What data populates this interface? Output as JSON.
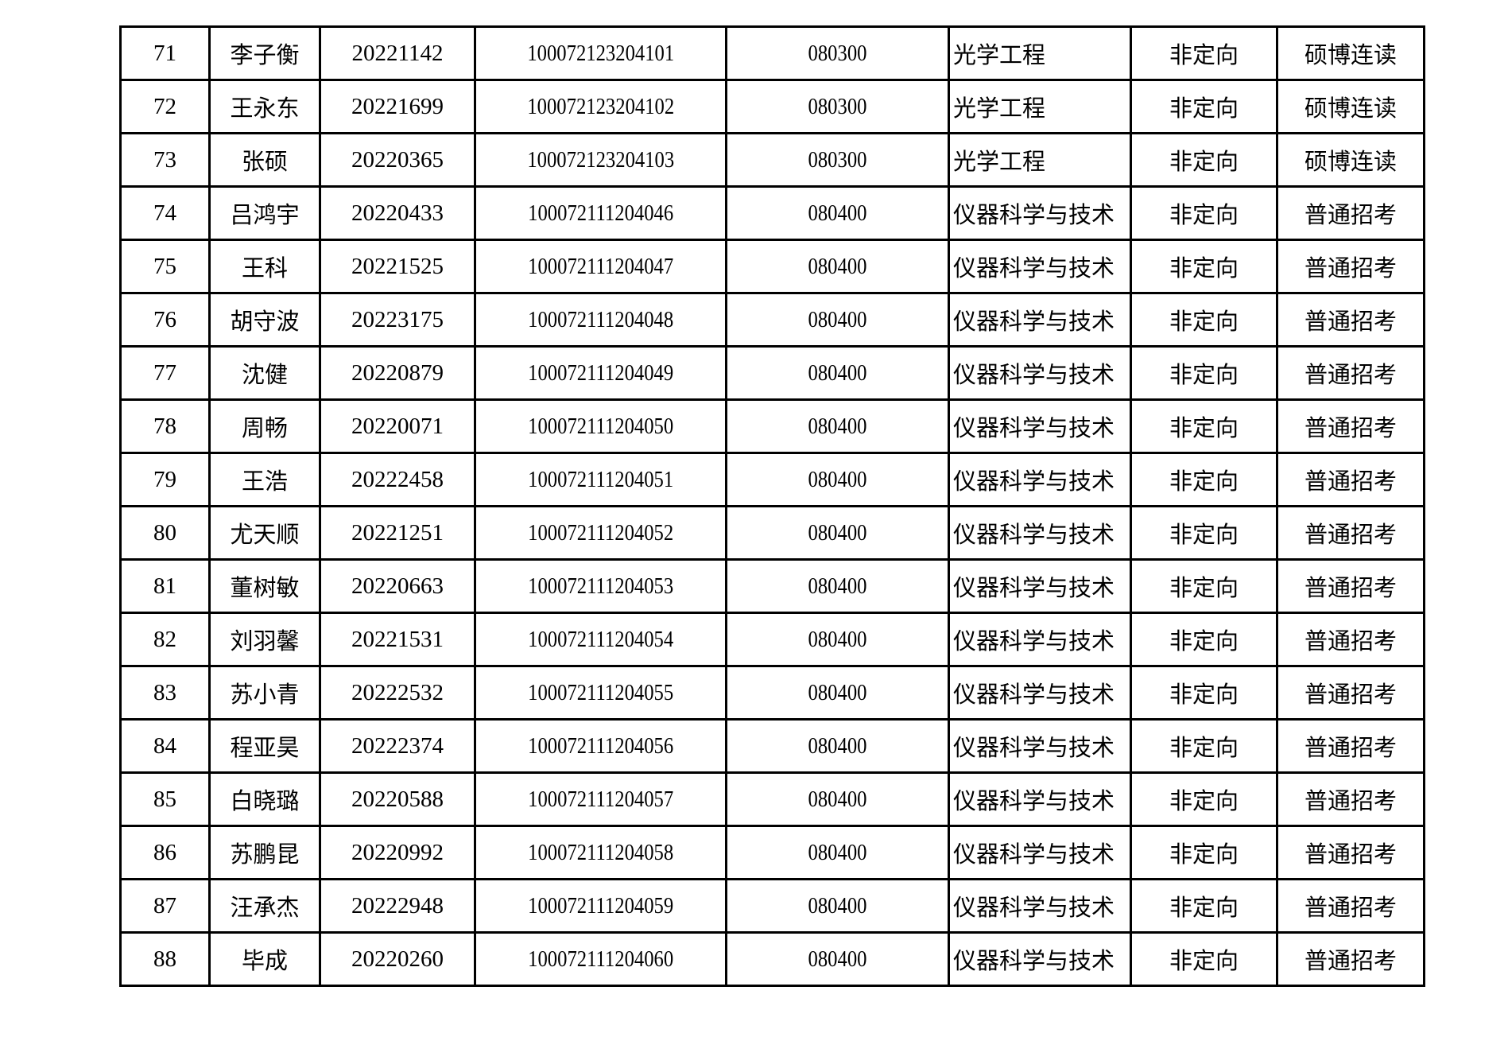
{
  "table": {
    "rows": [
      [
        "71",
        "李子衡",
        "20221142",
        "100072123204101",
        "080300",
        "光学工程",
        "非定向",
        "硕博连读"
      ],
      [
        "72",
        "王永东",
        "20221699",
        "100072123204102",
        "080300",
        "光学工程",
        "非定向",
        "硕博连读"
      ],
      [
        "73",
        "张硕",
        "20220365",
        "100072123204103",
        "080300",
        "光学工程",
        "非定向",
        "硕博连读"
      ],
      [
        "74",
        "吕鸿宇",
        "20220433",
        "100072111204046",
        "080400",
        "仪器科学与技术",
        "非定向",
        "普通招考"
      ],
      [
        "75",
        "王科",
        "20221525",
        "100072111204047",
        "080400",
        "仪器科学与技术",
        "非定向",
        "普通招考"
      ],
      [
        "76",
        "胡守波",
        "20223175",
        "100072111204048",
        "080400",
        "仪器科学与技术",
        "非定向",
        "普通招考"
      ],
      [
        "77",
        "沈健",
        "20220879",
        "100072111204049",
        "080400",
        "仪器科学与技术",
        "非定向",
        "普通招考"
      ],
      [
        "78",
        "周畅",
        "20220071",
        "100072111204050",
        "080400",
        "仪器科学与技术",
        "非定向",
        "普通招考"
      ],
      [
        "79",
        "王浩",
        "20222458",
        "100072111204051",
        "080400",
        "仪器科学与技术",
        "非定向",
        "普通招考"
      ],
      [
        "80",
        "尤天顺",
        "20221251",
        "100072111204052",
        "080400",
        "仪器科学与技术",
        "非定向",
        "普通招考"
      ],
      [
        "81",
        "董树敏",
        "20220663",
        "100072111204053",
        "080400",
        "仪器科学与技术",
        "非定向",
        "普通招考"
      ],
      [
        "82",
        "刘羽馨",
        "20221531",
        "100072111204054",
        "080400",
        "仪器科学与技术",
        "非定向",
        "普通招考"
      ],
      [
        "83",
        "苏小青",
        "20222532",
        "100072111204055",
        "080400",
        "仪器科学与技术",
        "非定向",
        "普通招考"
      ],
      [
        "84",
        "程亚昊",
        "20222374",
        "100072111204056",
        "080400",
        "仪器科学与技术",
        "非定向",
        "普通招考"
      ],
      [
        "85",
        "白晓璐",
        "20220588",
        "100072111204057",
        "080400",
        "仪器科学与技术",
        "非定向",
        "普通招考"
      ],
      [
        "86",
        "苏鹏昆",
        "20220992",
        "100072111204058",
        "080400",
        "仪器科学与技术",
        "非定向",
        "普通招考"
      ],
      [
        "87",
        "汪承杰",
        "20222948",
        "100072111204059",
        "080400",
        "仪器科学与技术",
        "非定向",
        "普通招考"
      ],
      [
        "88",
        "毕成",
        "20220260",
        "100072111204060",
        "080400",
        "仪器科学与技术",
        "非定向",
        "普通招考"
      ]
    ]
  }
}
